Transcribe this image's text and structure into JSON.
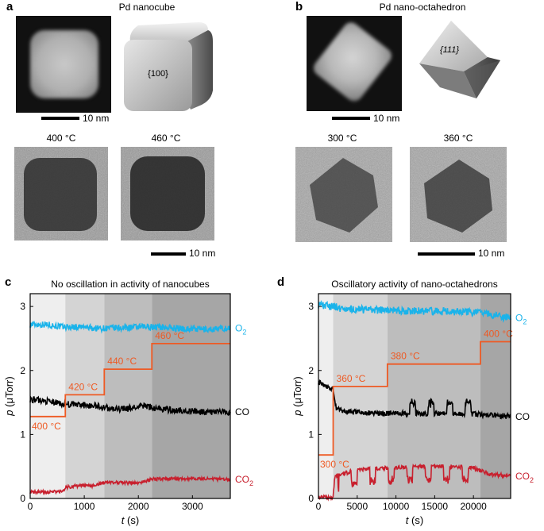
{
  "panels": {
    "a": {
      "letter": "a",
      "title": "Pd nanocube",
      "facet": "{100}",
      "scale": "10 nm",
      "temps": [
        "400 °C",
        "460 °C"
      ],
      "scale2": "10 nm"
    },
    "b": {
      "letter": "b",
      "title": "Pd nano-octahedron",
      "facet": "{111}",
      "scale": "10 nm",
      "temps": [
        "300 °C",
        "360 °C"
      ],
      "scale2": "10 nm"
    }
  },
  "colors": {
    "o2": "#1ab3ea",
    "co": "#000000",
    "co2": "#c8202e",
    "temp": "#ee5a24"
  },
  "chart_data": [
    {
      "panel": "c",
      "type": "line",
      "title": "No oscillation in activity of nanocubes",
      "xlabel_italic": "t",
      "xlabel_unit": " (s)",
      "ylabel_italic": "p",
      "ylabel_unit": " (μTorr)",
      "xlim": [
        0,
        3700
      ],
      "ylim": [
        0,
        3.2
      ],
      "xticks": [
        0,
        1000,
        2000,
        3000
      ],
      "yticks": [
        0,
        1,
        2,
        3
      ],
      "bands": [
        {
          "x0": 0,
          "x1": 650,
          "shade": "#eeeeee"
        },
        {
          "x0": 650,
          "x1": 1370,
          "shade": "#d4d4d4"
        },
        {
          "x0": 1370,
          "x1": 2250,
          "shade": "#bdbdbd"
        },
        {
          "x0": 2250,
          "x1": 3700,
          "shade": "#a6a6a6"
        }
      ],
      "series": [
        {
          "name": "O2",
          "label": "O",
          "sub": "2",
          "colorKey": "o2",
          "x": [
            0,
            300,
            600,
            900,
            1200,
            1500,
            1800,
            2100,
            2400,
            2700,
            3000,
            3300,
            3700
          ],
          "y": [
            2.72,
            2.72,
            2.68,
            2.68,
            2.66,
            2.66,
            2.67,
            2.68,
            2.68,
            2.66,
            2.65,
            2.64,
            2.66
          ],
          "noise": 0.05
        },
        {
          "name": "CO",
          "label": "CO",
          "colorKey": "co",
          "x": [
            0,
            300,
            600,
            900,
            1200,
            1500,
            1800,
            2100,
            2400,
            2700,
            3000,
            3300,
            3700
          ],
          "y": [
            1.55,
            1.52,
            1.48,
            1.46,
            1.45,
            1.4,
            1.4,
            1.45,
            1.4,
            1.38,
            1.36,
            1.35,
            1.35
          ],
          "noise": 0.05
        },
        {
          "name": "CO2",
          "label": "CO",
          "sub": "2",
          "colorKey": "co2",
          "x": [
            0,
            300,
            600,
            650,
            900,
            1200,
            1370,
            1600,
            2000,
            2250,
            2600,
            3000,
            3700
          ],
          "y": [
            0.1,
            0.1,
            0.11,
            0.17,
            0.2,
            0.2,
            0.25,
            0.25,
            0.24,
            0.3,
            0.31,
            0.31,
            0.3
          ],
          "noise": 0.025
        }
      ],
      "temperature": {
        "steps": [
          {
            "x0": 0,
            "x1": 650,
            "y": 1.28,
            "label": "400 °C"
          },
          {
            "x0": 650,
            "x1": 1370,
            "y": 1.62,
            "label": "420 °C"
          },
          {
            "x0": 1370,
            "x1": 2250,
            "y": 2.02,
            "label": "440 °C"
          },
          {
            "x0": 2250,
            "x1": 3700,
            "y": 2.42,
            "label": "460 °C"
          }
        ]
      }
    },
    {
      "panel": "d",
      "type": "line",
      "title": "Oscillatory activity of nano-octahedrons",
      "xlabel_italic": "t",
      "xlabel_unit": " (s)",
      "ylabel_italic": "p",
      "ylabel_unit": " (μTorr)",
      "xlim": [
        0,
        24800
      ],
      "ylim": [
        0,
        3.2
      ],
      "xticks": [
        0,
        5000,
        10000,
        15000,
        20000
      ],
      "yticks": [
        0,
        1,
        2,
        3
      ],
      "bands": [
        {
          "x0": 0,
          "x1": 1900,
          "shade": "#eeeeee"
        },
        {
          "x0": 1900,
          "x1": 8900,
          "shade": "#d4d4d4"
        },
        {
          "x0": 8900,
          "x1": 20900,
          "shade": "#bdbdbd"
        },
        {
          "x0": 20900,
          "x1": 24800,
          "shade": "#a6a6a6"
        }
      ],
      "series": [
        {
          "name": "O2",
          "label": "O",
          "sub": "2",
          "colorKey": "o2",
          "x": [
            0,
            1900,
            3000,
            6000,
            9000,
            12000,
            15000,
            18000,
            21000,
            23000,
            24800
          ],
          "y": [
            3.03,
            3.0,
            2.97,
            2.95,
            2.94,
            2.93,
            2.92,
            2.92,
            2.9,
            2.85,
            2.82
          ],
          "noise": 0.06
        },
        {
          "name": "CO",
          "label": "CO",
          "colorKey": "co",
          "x": [
            0,
            1000,
            1900,
            2300,
            4000,
            8000,
            12000,
            16000,
            20000,
            22000,
            24800
          ],
          "y": [
            1.82,
            1.76,
            1.7,
            1.4,
            1.35,
            1.33,
            1.33,
            1.32,
            1.32,
            1.3,
            1.28
          ],
          "noise": 0.04,
          "oscillate": {
            "from": 10500,
            "to": 20500,
            "amp": 0.2
          }
        },
        {
          "name": "CO2",
          "label": "CO",
          "sub": "2",
          "colorKey": "co2",
          "x": [
            0,
            1900,
            2100,
            5000,
            9000,
            13000,
            17000,
            20000,
            22000,
            24800
          ],
          "y": [
            0.02,
            0.02,
            0.35,
            0.45,
            0.48,
            0.5,
            0.5,
            0.48,
            0.38,
            0.35
          ],
          "noise": 0.03,
          "oscillate": {
            "from": 2500,
            "to": 20500,
            "amp": -0.25
          }
        }
      ],
      "temperature": {
        "steps": [
          {
            "x0": 0,
            "x1": 1900,
            "y": 0.68,
            "label": "300 °C"
          },
          {
            "x0": 1900,
            "x1": 8900,
            "y": 1.75,
            "label": "360 °C"
          },
          {
            "x0": 8900,
            "x1": 20900,
            "y": 2.1,
            "label": "380 °C"
          },
          {
            "x0": 20900,
            "x1": 24800,
            "y": 2.45,
            "label": "400 °C"
          }
        ]
      }
    }
  ]
}
